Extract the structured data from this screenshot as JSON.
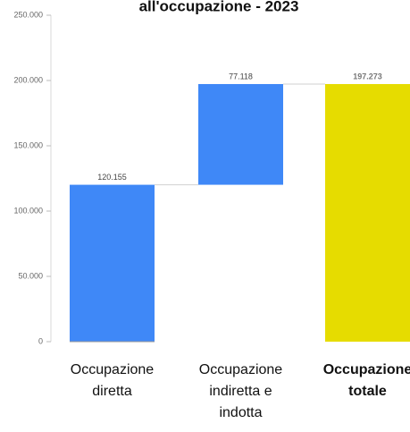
{
  "chart_data": {
    "type": "waterfall",
    "title": "all'occupazione - 2023",
    "categories": [
      "Occupazione diretta",
      "Occupazione indiretta e indotta",
      "Occupazione totale"
    ],
    "values": [
      120155,
      77118,
      197273
    ],
    "value_labels": [
      "120.155",
      "77.118",
      "197.273"
    ],
    "totals": [
      false,
      false,
      true
    ],
    "colors": [
      "#3f88f7",
      "#3f88f7",
      "#e6dc00"
    ],
    "ylim": [
      0,
      250000
    ],
    "yticks": [
      {
        "value": 0,
        "label": "0"
      },
      {
        "value": 50000,
        "label": "50.000"
      },
      {
        "value": 100000,
        "label": "100.000"
      },
      {
        "value": 150000,
        "label": "150.000"
      },
      {
        "value": 200000,
        "label": "200.000"
      },
      {
        "value": 250000,
        "label": "250.000"
      }
    ],
    "grid": false
  }
}
